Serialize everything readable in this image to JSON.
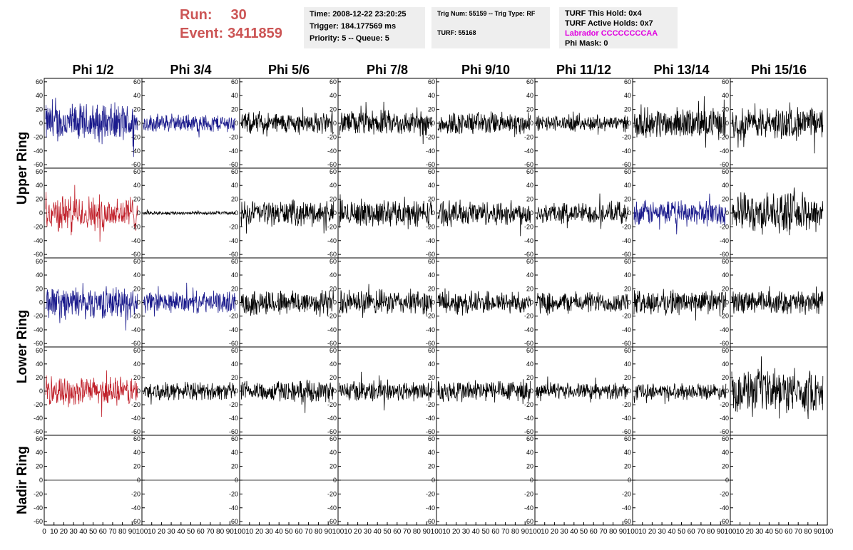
{
  "header": {
    "run_label": "Run:",
    "run_value": "30",
    "event_label": "Event:",
    "event_value": "3411859"
  },
  "info_panel": {
    "time": "Time: 2008-12-22 23:20:25",
    "trigger": "Trigger: 184.177569 ms",
    "priority": "Priority: 5 -- Queue: 5"
  },
  "trig_panel": {
    "trig": "Trig Num: 55159 -- Trig Type: RF",
    "turf": "TURF: 55168"
  },
  "turf_panel": {
    "this_hold": "TURF This Hold: 0x4",
    "active_holds": "TURF Active Holds: 0x7",
    "labrador": "Labrador CCCCCCCCAA",
    "phi_mask": "Phi Mask: 0"
  },
  "colors": {
    "hpol": "#1a1a8c",
    "triggered": "#c0202a",
    "default": "#000000",
    "accent_text": "#cc5555",
    "labrador_text": "#e000e0",
    "panel_bg": "#eeeeee"
  },
  "chart_data": {
    "type": "line",
    "columns": [
      "Phi 1/2",
      "Phi 3/4",
      "Phi 5/6",
      "Phi 7/8",
      "Phi 9/10",
      "Phi 11/12",
      "Phi 13/14",
      "Phi 15/16"
    ],
    "rings": [
      {
        "name": "Upper Ring",
        "rows": 2
      },
      {
        "name": "Lower Ring",
        "rows": 2
      },
      {
        "name": "Nadir Ring",
        "rows": 1
      }
    ],
    "ylim": [
      -65,
      65
    ],
    "yticks": [
      -60,
      -40,
      -20,
      0,
      20,
      40,
      60
    ],
    "xlim": [
      0,
      100
    ],
    "xticks": [
      0,
      10,
      20,
      30,
      40,
      50,
      60,
      70,
      80,
      90,
      100
    ],
    "grid": false,
    "traces": [
      [
        "blue",
        "blue",
        "black",
        "black",
        "black",
        "black",
        "black",
        "black"
      ],
      [
        "red",
        "black-flat",
        "black",
        "black",
        "black",
        "black",
        "blue",
        "black"
      ],
      [
        "blue",
        "blue",
        "black",
        "black",
        "black",
        "black",
        "black",
        "black"
      ],
      [
        "red",
        "black",
        "black",
        "black",
        "black",
        "black",
        "black",
        "black"
      ],
      [
        "zero",
        "zero",
        "zero",
        "zero",
        "zero",
        "zero",
        "zero",
        "none"
      ]
    ],
    "amplitudes": [
      [
        22,
        10,
        12,
        14,
        13,
        9,
        17,
        18
      ],
      [
        20,
        2,
        14,
        15,
        14,
        12,
        14,
        22
      ],
      [
        18,
        12,
        15,
        14,
        13,
        12,
        14,
        13
      ],
      [
        16,
        10,
        12,
        12,
        13,
        9,
        9,
        24
      ],
      [
        0,
        0,
        0,
        0,
        0,
        0,
        0,
        0
      ]
    ]
  }
}
